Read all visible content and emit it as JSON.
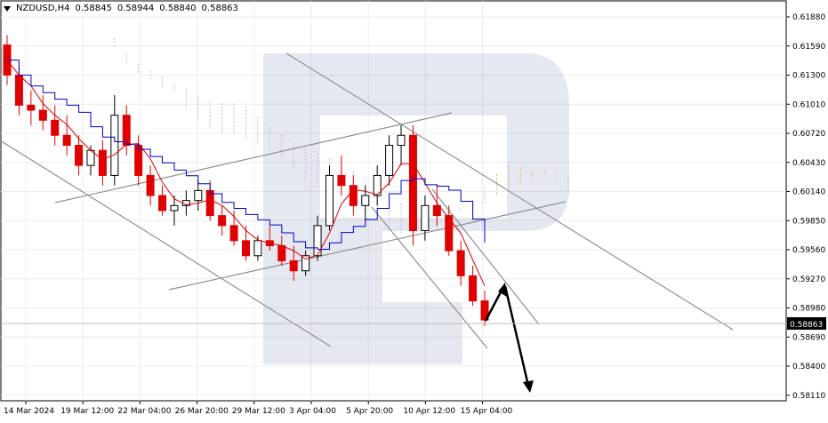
{
  "header": {
    "symbol": "NZDUSD,H4",
    "open": "0.58845",
    "high": "0.58944",
    "low": "0.58840",
    "close": "0.58863"
  },
  "chart_data": {
    "type": "candlestick",
    "price_axis_ticks": [
      "0.61880",
      "0.61590",
      "0.61300",
      "0.61010",
      "0.60720",
      "0.60430",
      "0.60140",
      "0.59850",
      "0.59560",
      "0.59270",
      "0.58980",
      "0.58690",
      "0.58400",
      "0.58110"
    ],
    "current_price_label": "0.58863",
    "time_axis_ticks": [
      "14 Mar 2024",
      "19 Mar 12:00",
      "22 Mar 04:00",
      "26 Mar 20:00",
      "29 Mar 12:00",
      "3 Apr 04:00",
      "5 Apr 20:00",
      "10 Apr 12:00",
      "15 Apr 04:00"
    ],
    "ylim": [
      0.5811,
      0.62
    ],
    "colors": {
      "bull_candle": "#000000",
      "bear_candle": "#e00000",
      "tenkan": "#e00000",
      "kijun": "#0000c8",
      "cloud_bull": "#f4a460",
      "cloud_bear": "#c8b4dc",
      "trendline": "#909090",
      "forecast_arrow": "#000000"
    },
    "series": [
      {
        "name": "NZDUSD",
        "ohlc_approx": [
          [
            0.616,
            0.617,
            0.612,
            0.613
          ],
          [
            0.613,
            0.614,
            0.609,
            0.61
          ],
          [
            0.61,
            0.6115,
            0.608,
            0.6095
          ],
          [
            0.6095,
            0.611,
            0.6075,
            0.6085
          ],
          [
            0.6085,
            0.61,
            0.606,
            0.607
          ],
          [
            0.607,
            0.609,
            0.605,
            0.606
          ],
          [
            0.606,
            0.607,
            0.603,
            0.604
          ],
          [
            0.604,
            0.606,
            0.603,
            0.6055
          ],
          [
            0.6055,
            0.6065,
            0.602,
            0.603
          ],
          [
            0.603,
            0.611,
            0.602,
            0.609
          ],
          [
            0.609,
            0.61,
            0.605,
            0.606
          ],
          [
            0.606,
            0.607,
            0.602,
            0.603
          ],
          [
            0.603,
            0.604,
            0.6,
            0.601
          ],
          [
            0.601,
            0.602,
            0.599,
            0.5995
          ],
          [
            0.5995,
            0.601,
            0.598,
            0.6
          ],
          [
            0.6,
            0.6015,
            0.599,
            0.6005
          ],
          [
            0.6005,
            0.6025,
            0.5995,
            0.6015
          ],
          [
            0.6015,
            0.6025,
            0.5985,
            0.599
          ],
          [
            0.599,
            0.6,
            0.597,
            0.598
          ],
          [
            0.598,
            0.5995,
            0.596,
            0.5965
          ],
          [
            0.5965,
            0.598,
            0.5945,
            0.595
          ],
          [
            0.595,
            0.597,
            0.5945,
            0.5965
          ],
          [
            0.5965,
            0.598,
            0.5955,
            0.596
          ],
          [
            0.596,
            0.597,
            0.594,
            0.5945
          ],
          [
            0.5945,
            0.596,
            0.5925,
            0.5935
          ],
          [
            0.5935,
            0.5955,
            0.593,
            0.595
          ],
          [
            0.595,
            0.599,
            0.5945,
            0.598
          ],
          [
            0.598,
            0.604,
            0.5975,
            0.603
          ],
          [
            0.603,
            0.605,
            0.601,
            0.602
          ],
          [
            0.602,
            0.603,
            0.599,
            0.6
          ],
          [
            0.6,
            0.602,
            0.5985,
            0.601
          ],
          [
            0.601,
            0.604,
            0.6,
            0.603
          ],
          [
            0.603,
            0.607,
            0.602,
            0.606
          ],
          [
            0.606,
            0.608,
            0.604,
            0.607
          ],
          [
            0.607,
            0.608,
            0.596,
            0.5975
          ],
          [
            0.5975,
            0.601,
            0.5965,
            0.6
          ],
          [
            0.6,
            0.602,
            0.598,
            0.599
          ],
          [
            0.599,
            0.6,
            0.595,
            0.5955
          ],
          [
            0.5955,
            0.5965,
            0.592,
            0.593
          ],
          [
            0.593,
            0.594,
            0.59,
            0.5905
          ],
          [
            0.5905,
            0.5915,
            0.588,
            0.5886
          ]
        ]
      },
      {
        "name": "Tenkan-sen"
      },
      {
        "name": "Kijun-sen"
      }
    ],
    "trendlines": 6,
    "forecast": "bounce up then fall"
  }
}
